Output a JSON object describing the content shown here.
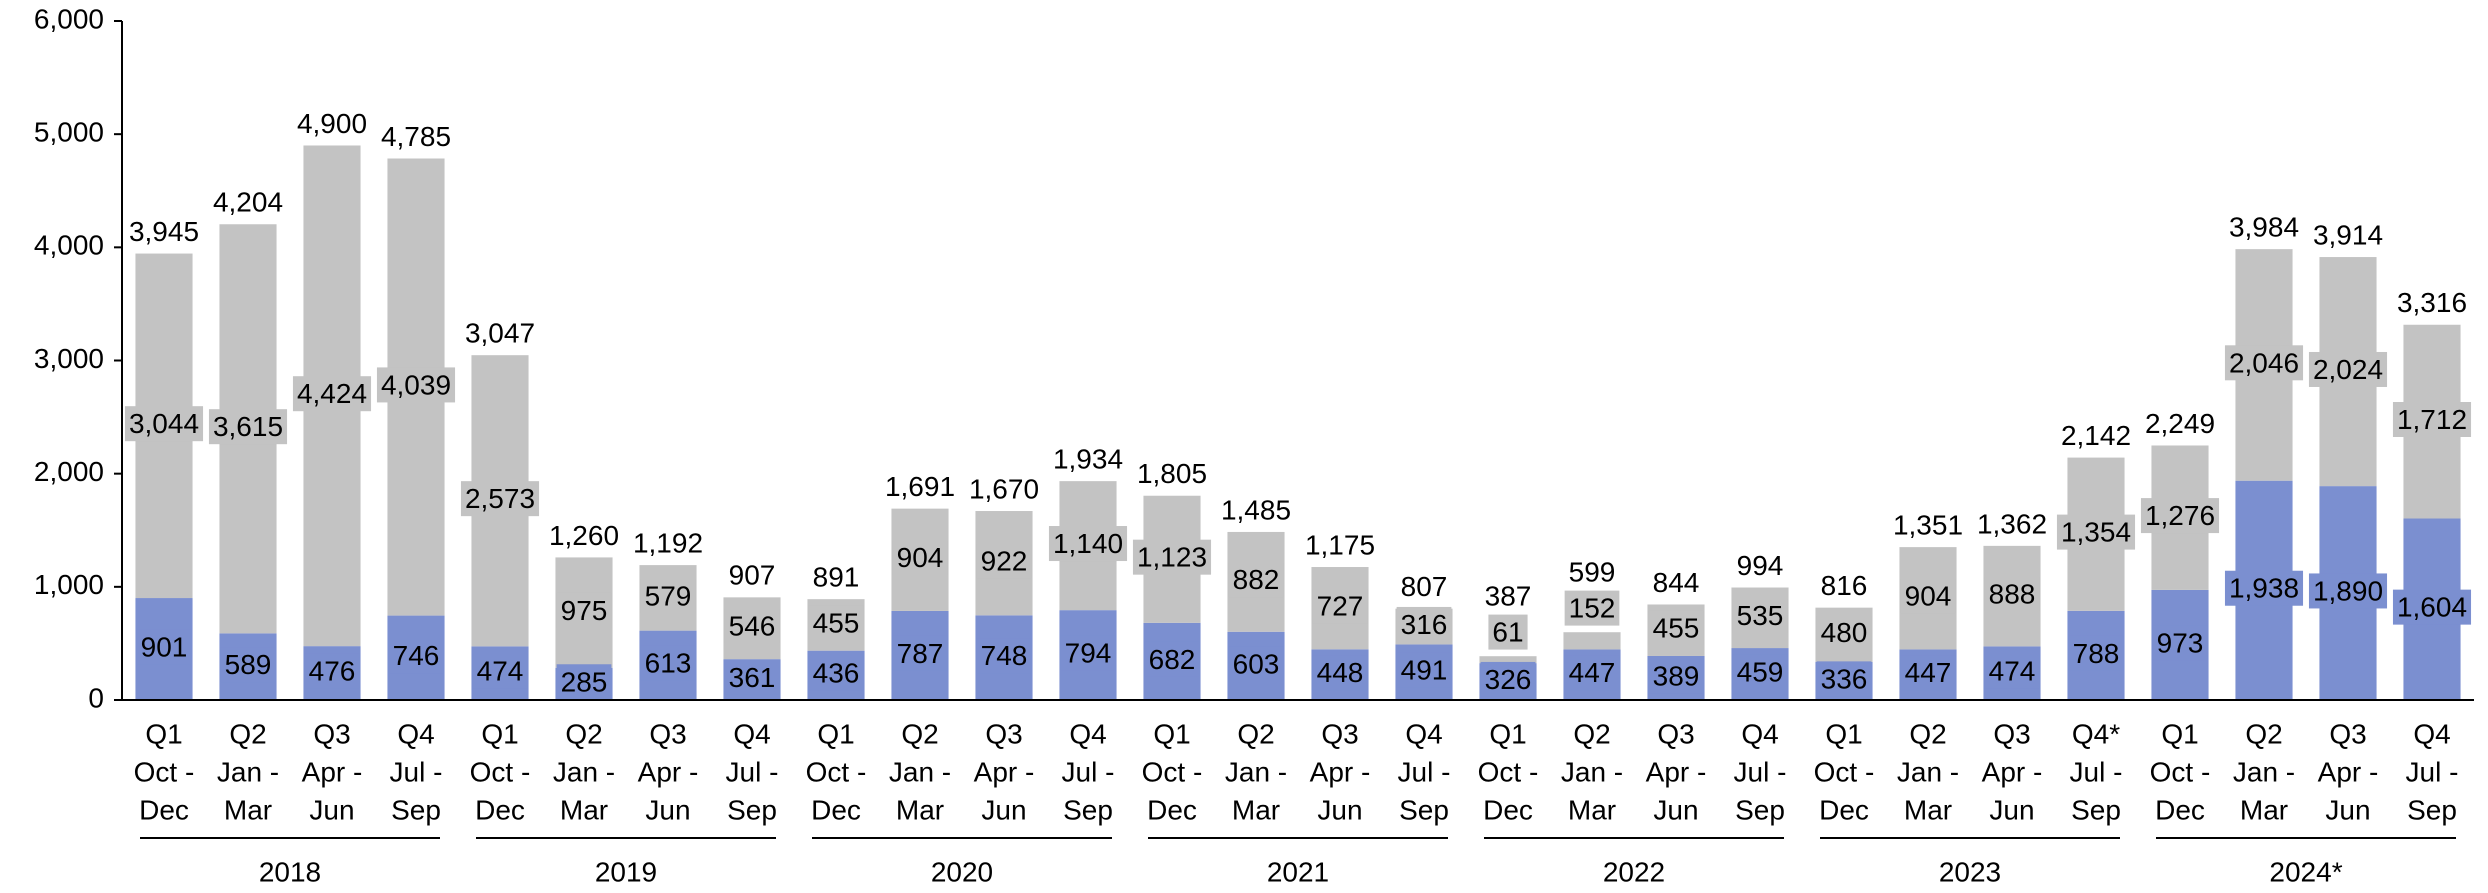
{
  "chart_data": {
    "type": "stacked_bar",
    "groups": [
      {
        "name": "2018",
        "categories": [
          "Q1",
          "Q2",
          "Q3",
          "Q4"
        ],
        "months": [
          [
            "Oct -",
            "Dec"
          ],
          [
            "Jan -",
            "Mar"
          ],
          [
            "Apr -",
            "Jun"
          ],
          [
            "Jul -",
            "Sep"
          ]
        ]
      },
      {
        "name": "2019",
        "categories": [
          "Q1",
          "Q2",
          "Q3",
          "Q4"
        ],
        "months": [
          [
            "Oct -",
            "Dec"
          ],
          [
            "Jan -",
            "Mar"
          ],
          [
            "Apr -",
            "Jun"
          ],
          [
            "Jul -",
            "Sep"
          ]
        ]
      },
      {
        "name": "2020",
        "categories": [
          "Q1",
          "Q2",
          "Q3",
          "Q4"
        ],
        "months": [
          [
            "Oct -",
            "Dec"
          ],
          [
            "Jan -",
            "Mar"
          ],
          [
            "Apr -",
            "Jun"
          ],
          [
            "Jul -",
            "Sep"
          ]
        ]
      },
      {
        "name": "2021",
        "categories": [
          "Q1",
          "Q2",
          "Q3",
          "Q4"
        ],
        "months": [
          [
            "Oct -",
            "Dec"
          ],
          [
            "Jan -",
            "Mar"
          ],
          [
            "Apr -",
            "Jun"
          ],
          [
            "Jul -",
            "Sep"
          ]
        ]
      },
      {
        "name": "2022",
        "categories": [
          "Q1",
          "Q2",
          "Q3",
          "Q4"
        ],
        "months": [
          [
            "Oct -",
            "Dec"
          ],
          [
            "Jan -",
            "Mar"
          ],
          [
            "Apr -",
            "Jun"
          ],
          [
            "Jul -",
            "Sep"
          ]
        ]
      },
      {
        "name": "2023",
        "categories": [
          "Q1",
          "Q2",
          "Q3",
          "Q4*"
        ],
        "months": [
          [
            "Oct -",
            "Dec"
          ],
          [
            "Jan -",
            "Mar"
          ],
          [
            "Apr -",
            "Jun"
          ],
          [
            "Jul -",
            "Sep"
          ]
        ]
      },
      {
        "name": "2024*",
        "categories": [
          "Q1",
          "Q2",
          "Q3",
          "Q4"
        ],
        "months": [
          [
            "Oct -",
            "Dec"
          ],
          [
            "Jan -",
            "Mar"
          ],
          [
            "Apr -",
            "Jun"
          ],
          [
            "Jul -",
            "Sep"
          ]
        ]
      }
    ],
    "series": [
      {
        "color": "#7b8fd0",
        "label_color": "#ffffff",
        "values": [
          901,
          589,
          476,
          746,
          474,
          285,
          613,
          361,
          436,
          787,
          748,
          794,
          682,
          603,
          448,
          491,
          326,
          447,
          389,
          459,
          336,
          447,
          474,
          788,
          973,
          1938,
          1890,
          1604
        ],
        "value_labels": [
          "901",
          "589",
          "476",
          "746",
          "474",
          "285",
          "613",
          "361",
          "436",
          "787",
          "748",
          "794",
          "682",
          "603",
          "448",
          "491",
          "326",
          "447",
          "389",
          "459",
          "336",
          "447",
          "474",
          "788",
          "973",
          "1,938",
          "1,890",
          "1,604"
        ]
      },
      {
        "color": "#c3c3c3",
        "label_color": "#000000",
        "values": [
          3044,
          3615,
          4424,
          4039,
          2573,
          975,
          579,
          546,
          455,
          904,
          922,
          1140,
          1123,
          882,
          727,
          316,
          61,
          152,
          455,
          535,
          480,
          904,
          888,
          1354,
          1276,
          2046,
          2024,
          1712
        ],
        "value_labels": [
          "3,044",
          "3,615",
          "4,424",
          "4,039",
          "2,573",
          "975",
          "579",
          "546",
          "455",
          "904",
          "922",
          "1,140",
          "1,123",
          "882",
          "727",
          "316",
          "61",
          "152",
          "455",
          "535",
          "480",
          "904",
          "888",
          "1,354",
          "1,276",
          "2,046",
          "2,024",
          "1,712"
        ]
      }
    ],
    "totals": {
      "values": [
        3945,
        4204,
        4900,
        4785,
        3047,
        1260,
        1192,
        907,
        891,
        1691,
        1670,
        1934,
        1805,
        1485,
        1175,
        807,
        387,
        599,
        844,
        994,
        816,
        1351,
        1362,
        2142,
        2249,
        3984,
        3914,
        3316
      ],
      "value_labels": [
        "3,945",
        "4,204",
        "4,900",
        "4,785",
        "3,047",
        "1,260",
        "1,192",
        "907",
        "891",
        "1,691",
        "1,670",
        "1,934",
        "1,805",
        "1,485",
        "1,175",
        "807",
        "387",
        "599",
        "844",
        "994",
        "816",
        "1,351",
        "1,362",
        "2,142",
        "2,249",
        "3,984",
        "3,914",
        "3,316"
      ]
    },
    "ylim": [
      0,
      6000
    ],
    "yticks": [
      0,
      {
        "value": 1000,
        "label": "1,000"
      },
      {
        "value": 2000,
        "label": "2,000"
      },
      {
        "value": 3000,
        "label": "3,000"
      },
      {
        "value": 4000,
        "label": "4,000"
      },
      {
        "value": 5000,
        "label": "5,000"
      },
      {
        "value": 6000,
        "label": "6,000"
      }
    ]
  }
}
